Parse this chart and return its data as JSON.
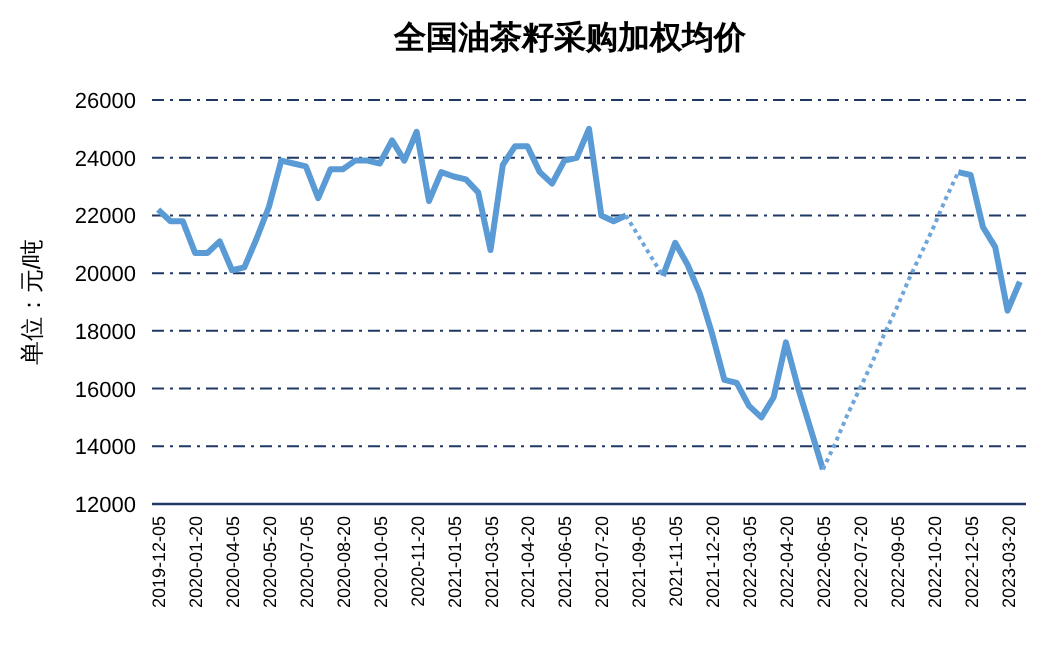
{
  "chart_data": {
    "type": "line",
    "title": "全国油茶籽采购加权均价",
    "ylabel": "单位：元/吨",
    "categories": [
      "2019-12-05",
      null,
      null,
      "2020-01-20",
      null,
      null,
      "2020-04-05",
      null,
      null,
      "2020-05-20",
      null,
      null,
      "2020-07-05",
      null,
      null,
      "2020-08-20",
      null,
      null,
      "2020-10-05",
      null,
      null,
      "2020-11-20",
      null,
      null,
      "2021-01-05",
      null,
      null,
      "2021-03-05",
      null,
      null,
      "2021-04-20",
      null,
      null,
      "2021-06-05",
      null,
      null,
      "2021-07-20",
      null,
      null,
      "2021-09-05",
      null,
      null,
      "2021-11-05",
      null,
      null,
      "2021-12-20",
      null,
      null,
      "2022-03-05",
      null,
      null,
      "2022-04-20",
      null,
      null,
      "2022-06-05",
      null,
      null,
      "2022-07-20",
      null,
      null,
      "2022-09-05",
      null,
      null,
      "2022-10-20",
      null,
      null,
      "2022-12-05",
      null,
      null,
      "2023-03-20",
      null
    ],
    "series": [
      {
        "color": "#5b9bd5",
        "line_style": "solid",
        "values": [
          22200,
          21800,
          21800,
          20700,
          20700,
          21100,
          20100,
          20200,
          21200,
          22300,
          23900,
          23800,
          23700,
          22600,
          23600,
          23600,
          23900,
          23900,
          23800,
          24600,
          23900,
          24900,
          22500,
          23500,
          23350,
          23250,
          22800,
          20800,
          23750,
          24400,
          24400,
          23500,
          23100,
          23900,
          24000,
          25000,
          22000,
          21800,
          22000,
          null,
          null,
          19900,
          21050,
          20300,
          19300,
          17900,
          16300,
          16200,
          15400,
          15000,
          15700,
          17600,
          16000,
          14600,
          13200,
          null,
          null,
          null,
          null,
          null,
          null,
          null,
          null,
          null,
          null,
          23500,
          23400,
          21600,
          20900,
          18700,
          19700
        ]
      },
      {
        "color": "#6ea6da",
        "line_style": "dotted",
        "values": [
          null,
          null,
          null,
          null,
          null,
          null,
          null,
          null,
          null,
          null,
          null,
          null,
          null,
          null,
          null,
          null,
          null,
          null,
          null,
          null,
          null,
          null,
          null,
          null,
          null,
          null,
          null,
          null,
          null,
          null,
          null,
          null,
          null,
          null,
          null,
          null,
          null,
          null,
          22000,
          21300,
          20600,
          19900,
          null,
          null,
          null,
          null,
          null,
          null,
          null,
          null,
          null,
          null,
          null,
          null,
          null,
          null,
          null,
          null,
          null,
          null,
          null,
          null,
          null,
          null,
          null,
          null,
          null,
          null,
          null,
          null,
          null
        ]
      },
      {
        "color": "#6ea6da",
        "line_style": "dotted",
        "values": [
          null,
          null,
          null,
          null,
          null,
          null,
          null,
          null,
          null,
          null,
          null,
          null,
          null,
          null,
          null,
          null,
          null,
          null,
          null,
          null,
          null,
          null,
          null,
          null,
          null,
          null,
          null,
          null,
          null,
          null,
          null,
          null,
          null,
          null,
          null,
          null,
          null,
          null,
          null,
          null,
          null,
          null,
          null,
          null,
          null,
          null,
          null,
          null,
          null,
          null,
          null,
          null,
          null,
          null,
          13200,
          14100,
          15100,
          16000,
          16900,
          17900,
          18800,
          19800,
          20700,
          21600,
          22600,
          23500,
          null,
          null,
          null,
          null,
          null
        ]
      }
    ],
    "ylim": [
      12000,
      26000
    ],
    "yticks": [
      12000,
      14000,
      16000,
      18000,
      20000,
      22000,
      24000,
      26000
    ],
    "grid": "y"
  }
}
